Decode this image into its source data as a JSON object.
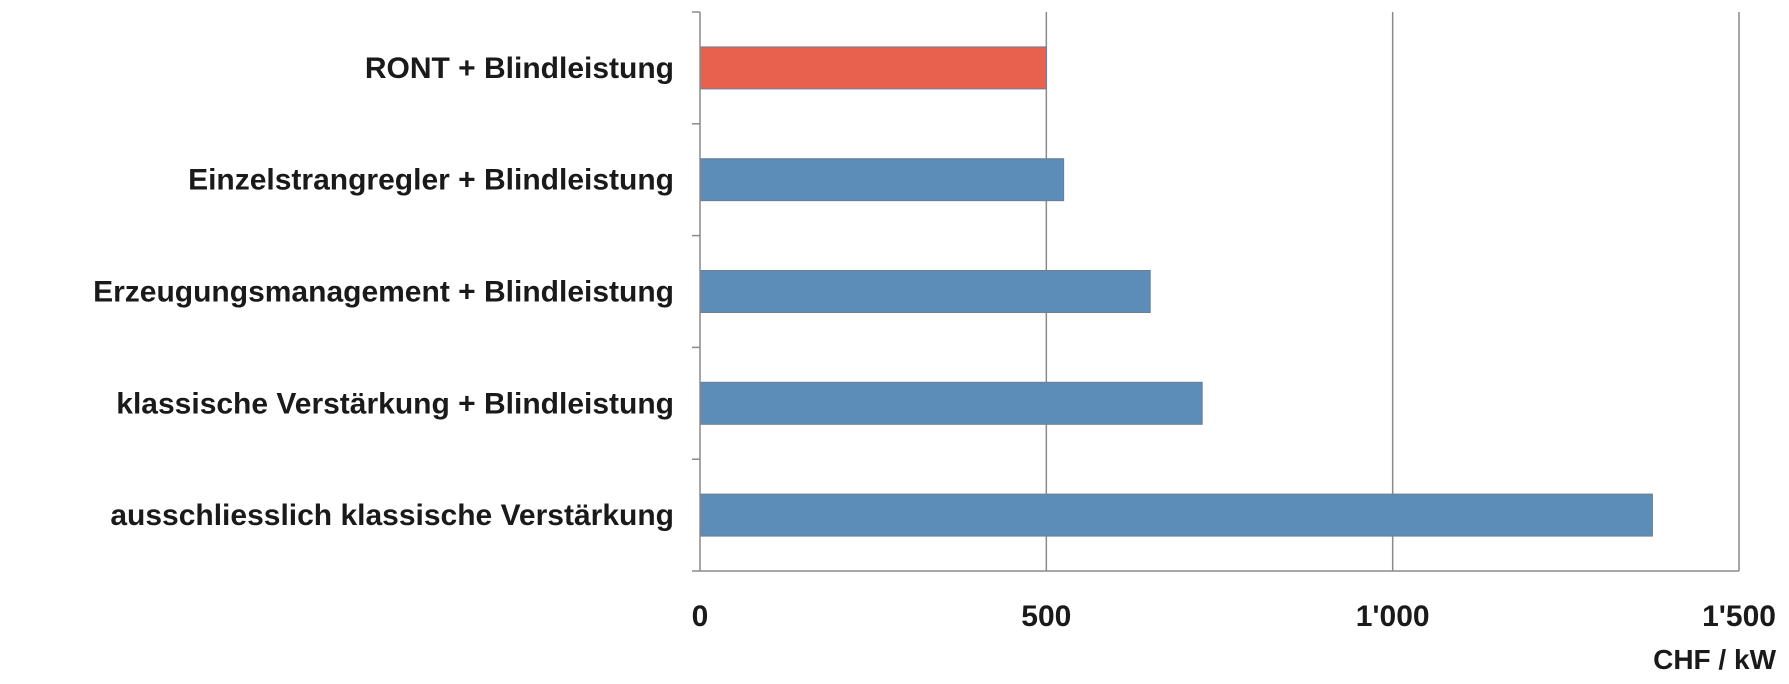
{
  "chart_data": {
    "type": "bar",
    "orientation": "horizontal",
    "categories": [
      "RONT + Blindleistung",
      "Einzelstrangregler + Blindleistung",
      "Erzeugungsmanagement + Blindleistung",
      "klassische Verstärkung + Blindleistung",
      "ausschliesslich klassische Verstärkung"
    ],
    "values": [
      500,
      525,
      650,
      725,
      1375
    ],
    "bar_colors": [
      "#e8614e",
      "#5b8db8",
      "#5b8db8",
      "#5b8db8",
      "#5b8db8"
    ],
    "title": "",
    "xlabel": "CHF / kW",
    "ylabel": "",
    "xlim": [
      0,
      1500
    ],
    "xticks": [
      0,
      500,
      1000,
      1500
    ],
    "xtick_labels": [
      "0",
      "500",
      "1'000",
      "1'500"
    ],
    "grid": "vertical",
    "legend": "none"
  }
}
